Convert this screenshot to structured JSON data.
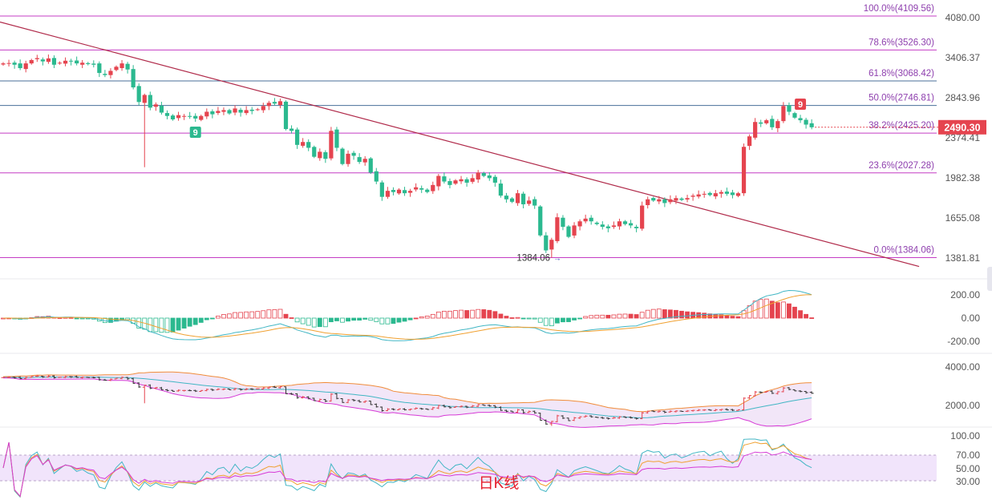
{
  "chart_data": {
    "type": "candlestick",
    "title": "",
    "colors": {
      "up": "#e5444f",
      "down": "#2bb98f",
      "fib_line": "#c43cc4",
      "trend": "#b02a4a",
      "price_tag": "#e5444f"
    },
    "price_axis": {
      "ticks": [
        {
          "value": 4080,
          "label": "4080.00"
        },
        {
          "value": 3406.37,
          "label": "3406.37"
        },
        {
          "value": 2843.96,
          "label": "2843.96"
        },
        {
          "value": 2374.41,
          "label": "2374.41"
        },
        {
          "value": 1982.38,
          "label": "1982.38"
        },
        {
          "value": 1655.08,
          "label": "1655.08"
        },
        {
          "value": 1381.81,
          "label": "1381.81"
        }
      ],
      "scale": "log"
    },
    "fib_levels": [
      {
        "ratio": "100.0%",
        "price": 4109.56,
        "label": "100.0%(4109.56)"
      },
      {
        "ratio": "78.6%",
        "price": 3526.3,
        "label": "78.6%(3526.30)"
      },
      {
        "ratio": "61.8%",
        "price": 3068.42,
        "label": "61.8%(3068.42)"
      },
      {
        "ratio": "50.0%",
        "price": 2746.81,
        "label": "50.0%(2746.81)"
      },
      {
        "ratio": "38.2%",
        "price": 2425.2,
        "label": "38.2%(2425.20)"
      },
      {
        "ratio": "23.6%",
        "price": 2027.28,
        "label": "23.6%(2027.28)"
      },
      {
        "ratio": "0.0%",
        "price": 1384.06,
        "label": "0.0%(1384.06)"
      }
    ],
    "last_price": "2490.30",
    "low_annotation": "1384.06",
    "sequential_markers": [
      {
        "label": "9",
        "bar": 34,
        "kind": "buy"
      },
      {
        "label": "9",
        "bar": 141,
        "kind": "sell"
      }
    ],
    "trendline": {
      "start": {
        "bar": 0,
        "price": 4000
      },
      "end": {
        "bar": 162,
        "price": 1330
      }
    },
    "close": [
      3320,
      3325,
      3300,
      3250,
      3320,
      3370,
      3400,
      3350,
      3395,
      3300,
      3330,
      3360,
      3350,
      3320,
      3330,
      3310,
      3300,
      3180,
      3150,
      3210,
      3270,
      3320,
      3230,
      2980,
      2790,
      2880,
      2720,
      2760,
      2660,
      2620,
      2580,
      2630,
      2620,
      2610,
      2590,
      2620,
      2670,
      2640,
      2680,
      2690,
      2650,
      2710,
      2660,
      2690,
      2680,
      2700,
      2740,
      2780,
      2770,
      2800,
      2470,
      2450,
      2300,
      2330,
      2270,
      2180,
      2230,
      2160,
      2450,
      2270,
      2110,
      2210,
      2190,
      2130,
      2160,
      2030,
      1950,
      1820,
      1870,
      1860,
      1880,
      1850,
      1870,
      1900,
      1880,
      1860,
      1920,
      2000,
      1950,
      1920,
      1960,
      1970,
      1940,
      1980,
      2030,
      2000,
      1980,
      1940,
      1830,
      1800,
      1780,
      1850,
      1760,
      1790,
      1750,
      1530,
      1430,
      1500,
      1660,
      1590,
      1520,
      1600,
      1630,
      1650,
      1630,
      1610,
      1590,
      1580,
      1600,
      1630,
      1610,
      1600,
      1580,
      1750,
      1800,
      1790,
      1800,
      1770,
      1800,
      1810,
      1795,
      1810,
      1830,
      1840,
      1845,
      1835,
      1850,
      1860,
      1845,
      1835,
      1850,
      2280,
      2390,
      2550,
      2530,
      2570,
      2490,
      2560,
      2740,
      2670,
      2600,
      2570,
      2520,
      2490
    ],
    "macd_panel": {
      "ticks": [
        "200.00",
        "0.00",
        "-200.00"
      ]
    },
    "bollinger_panel": {
      "ticks": [
        "4000.00",
        "2000.00"
      ]
    },
    "rsi_panel": {
      "ticks": [
        "100.00",
        "70.00",
        "50.00",
        "30.00"
      ],
      "band": [
        30,
        70
      ]
    },
    "watermark": "日K线"
  }
}
